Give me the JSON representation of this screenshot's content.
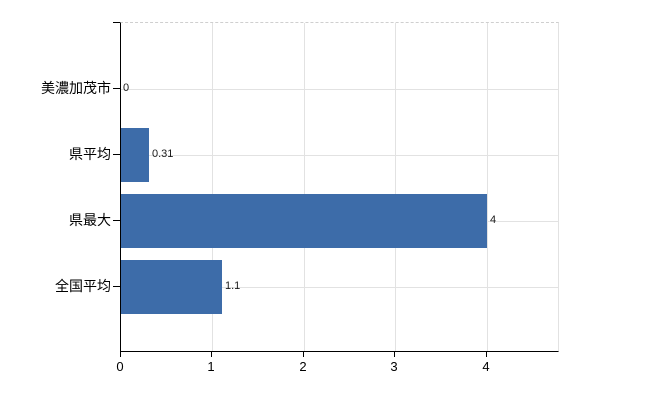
{
  "chart_data": {
    "type": "bar",
    "orientation": "horizontal",
    "title": "",
    "categories": [
      "美濃加茂市",
      "県平均",
      "県最大",
      "全国平均"
    ],
    "values": [
      0,
      0.31,
      4,
      1.1
    ],
    "value_labels": [
      "0",
      "0.31",
      "4",
      "1.1"
    ],
    "x_ticks": [
      0,
      1,
      2,
      3,
      4
    ],
    "x_tick_labels": [
      "0",
      "1",
      "2",
      "3",
      "4"
    ],
    "xlim": [
      0,
      4.8
    ],
    "grid": true,
    "legend_position": "none",
    "colors": {
      "bar": "#3d6ca9",
      "axis": "#000000",
      "gridline": "#e2e2e2",
      "top_border": "#cfcfcf",
      "text": "#000000",
      "data_label": "#1a1a1a"
    }
  }
}
